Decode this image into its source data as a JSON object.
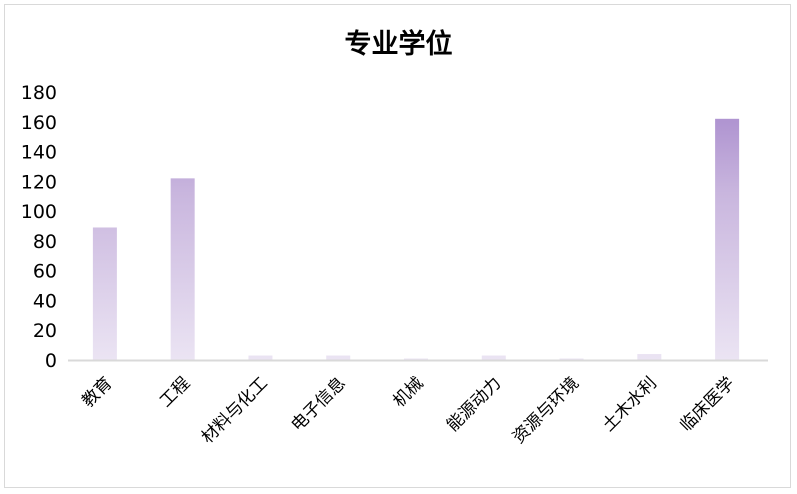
{
  "chart_data": {
    "type": "bar",
    "title": "专业学位",
    "categories": [
      "教育",
      "工程",
      "材料与化工",
      "电子信息",
      "机械",
      "能源动力",
      "资源与环境",
      "土木水利",
      "临床医学"
    ],
    "values": [
      89,
      122,
      3,
      3,
      1,
      3,
      1,
      4,
      162
    ],
    "ylim": [
      0,
      180
    ],
    "yticks": [
      0,
      20,
      40,
      60,
      80,
      100,
      120,
      140,
      160,
      180
    ],
    "xlabel": "",
    "ylabel": "",
    "grid": false,
    "legend": "none",
    "colors": {
      "bar_top": "#b095d1",
      "bar_bottom": "#ebe4f3",
      "axis": "#d9d9d9"
    }
  }
}
